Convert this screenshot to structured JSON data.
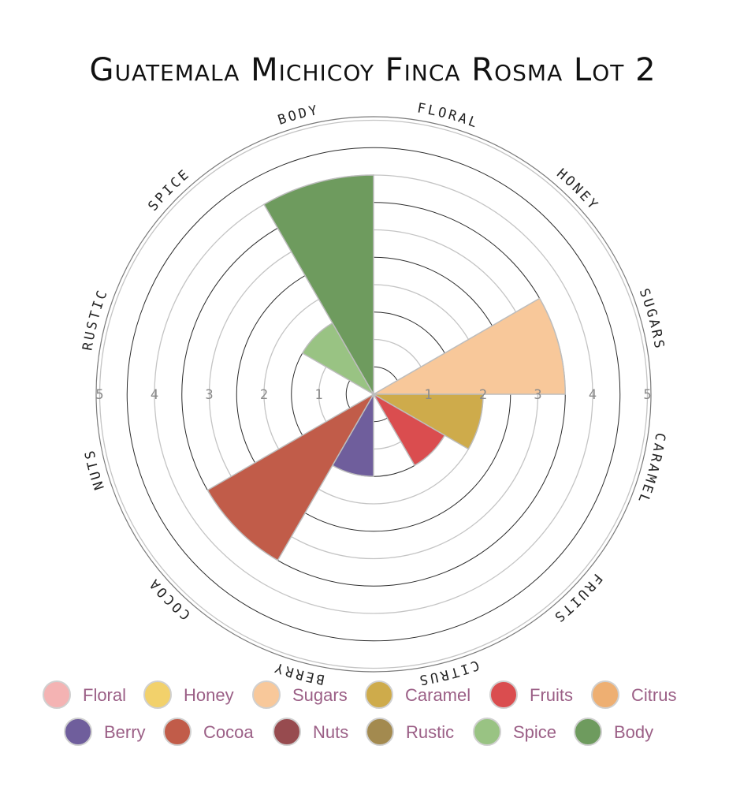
{
  "chart_data": {
    "type": "polar-area",
    "title": "Guatemala Michicoy Finca Rosma Lot 2",
    "rmax": 5,
    "ticks": [
      "1",
      "2",
      "3",
      "4",
      "5"
    ],
    "categories": [
      "Floral",
      "Honey",
      "Sugars",
      "Caramel",
      "Fruits",
      "Citrus",
      "Berry",
      "Cocoa",
      "Nuts",
      "Rustic",
      "Spice",
      "Body"
    ],
    "ring_labels": [
      "FLORAL",
      "HONEY",
      "SUGARS",
      "CARAMEL",
      "FRUITS",
      "CITRUS",
      "BERRY",
      "COCOA",
      "NUTS",
      "RUSTIC",
      "SPICE",
      "BODY"
    ],
    "values": [
      0,
      0,
      3.5,
      2,
      1.5,
      0,
      1.5,
      3.5,
      0,
      0,
      1.5,
      4
    ],
    "colors": [
      "#f4b3b3",
      "#f2d16b",
      "#f8c89a",
      "#ceab4b",
      "#da4d4f",
      "#eeaf72",
      "#6f5e9c",
      "#c15c49",
      "#974b4f",
      "#a38a4f",
      "#99c383",
      "#6e9b5e"
    ],
    "legend_placement": "bottom"
  }
}
